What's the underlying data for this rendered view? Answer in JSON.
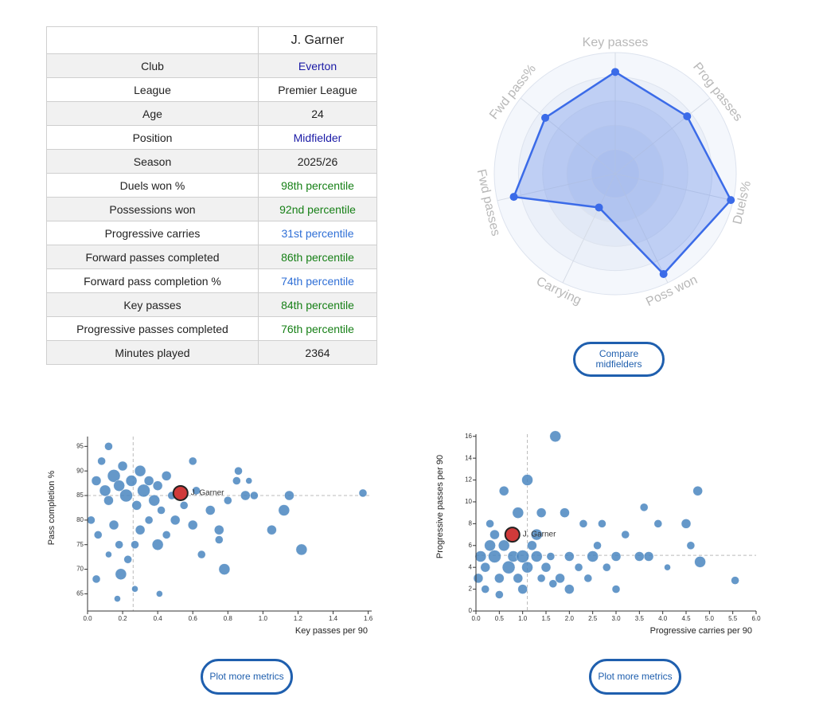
{
  "table": {
    "header": [
      "",
      "J. Garner"
    ],
    "rows": [
      {
        "label": "Club",
        "value": "Everton",
        "color": "#1a1aa6"
      },
      {
        "label": "League",
        "value": "Premier League",
        "color": "#222222"
      },
      {
        "label": "Age",
        "value": "24",
        "color": "#222222"
      },
      {
        "label": "Position",
        "value": "Midfielder",
        "color": "#1a1aa6"
      },
      {
        "label": "Season",
        "value": "2025/26",
        "color": "#222222"
      },
      {
        "label": "Duels won %",
        "value": "98th percentile",
        "color": "#178017"
      },
      {
        "label": "Possessions won",
        "value": "92nd percentile",
        "color": "#178017"
      },
      {
        "label": "Progressive carries",
        "value": "31st percentile",
        "color": "#2f6fd6"
      },
      {
        "label": "Forward passes completed",
        "value": "86th percentile",
        "color": "#178017"
      },
      {
        "label": "Forward pass completion %",
        "value": "74th percentile",
        "color": "#2f6fd6"
      },
      {
        "label": "Key passes",
        "value": "84th percentile",
        "color": "#178017"
      },
      {
        "label": "Progressive passes completed",
        "value": "76th percentile",
        "color": "#178017"
      },
      {
        "label": "Minutes played",
        "value": "2364",
        "color": "#222222"
      }
    ]
  },
  "buttons": [
    "Compare midfielders",
    "Plot more metrics",
    "Plot more metrics"
  ],
  "chart_data": [
    {
      "type": "radar",
      "categories": [
        "Key passes",
        "Prog passes",
        "Duels%",
        "Poss won",
        "Carrying",
        "Fwd passes",
        "Fwd pass%"
      ],
      "values": [
        84,
        76,
        98,
        92,
        31,
        86,
        74
      ],
      "rlim": [
        0,
        100
      ],
      "color": "#3b6be8"
    },
    {
      "type": "scatter",
      "y_label": "Pass completion %",
      "x_label": "Key passes per 90",
      "xlim": [
        0,
        1.62
      ],
      "ylim": [
        61.5,
        97
      ],
      "xticks": [
        {
          "value": 0,
          "label": "0.0"
        },
        {
          "value": 0.2,
          "label": "0.2"
        },
        {
          "value": 0.4,
          "label": "0.4"
        },
        {
          "value": 0.6,
          "label": "0.6"
        },
        {
          "value": 0.8,
          "label": "0.8"
        },
        {
          "value": 1,
          "label": "1.0"
        },
        {
          "value": 1.2,
          "label": "1.2"
        },
        {
          "value": 1.4,
          "label": "1.4"
        },
        {
          "value": 1.6,
          "label": "1.6"
        }
      ],
      "yticks": [
        65,
        70,
        75,
        80,
        85,
        90,
        95
      ],
      "reference_lines": {
        "x": 0.26,
        "y": 85
      },
      "points": {
        "color": "#4a86c0",
        "x": [
          0.05,
          0.08,
          0.1,
          0.12,
          0.15,
          0.18,
          0.2,
          0.22,
          0.25,
          0.28,
          0.3,
          0.32,
          0.35,
          0.38,
          0.4,
          0.42,
          0.45,
          0.48,
          0.02,
          0.06,
          0.12,
          0.15,
          0.18,
          0.19,
          0.23,
          0.27,
          0.3,
          0.35,
          0.4,
          0.45,
          0.5,
          0.55,
          0.6,
          0.62,
          0.65,
          0.7,
          0.75,
          0.78,
          0.8,
          0.85,
          0.9,
          0.95,
          1.05,
          1.12,
          1.15,
          1.22,
          1.57,
          0.12,
          0.05,
          0.17,
          0.41,
          0.27,
          0.6,
          0.86,
          0.92,
          0.75
        ],
        "values": [
          88,
          92,
          86,
          84,
          89,
          87,
          91,
          85,
          88,
          83,
          90,
          86,
          88,
          84,
          87,
          82,
          89,
          85,
          80,
          77,
          73,
          79,
          75,
          69,
          72,
          66,
          78,
          80,
          75,
          77,
          80,
          83,
          79,
          86,
          73,
          82,
          78,
          70,
          84,
          88,
          85,
          85,
          78,
          82,
          85,
          74,
          85.5,
          95,
          68,
          64,
          65,
          75,
          92,
          90,
          88,
          76
        ],
        "sizes": [
          6,
          5,
          7,
          6,
          8,
          7,
          6,
          8,
          7,
          6,
          7,
          8,
          6,
          7,
          6,
          5,
          6,
          5,
          5,
          5,
          4,
          6,
          5,
          7,
          5,
          4,
          6,
          5,
          7,
          5,
          6,
          5,
          6,
          5,
          5,
          6,
          6,
          7,
          5,
          5,
          6,
          5,
          6,
          7,
          6,
          7,
          5,
          5,
          5,
          4,
          4,
          5,
          5,
          5,
          4,
          5
        ]
      },
      "highlight": {
        "label": "J. Garner",
        "x": 0.53,
        "value": 85.5,
        "color": "#d03a3a"
      }
    },
    {
      "type": "scatter",
      "y_label": "Progressive passes per 90",
      "x_label": "Progressive carries per 90",
      "xlim": [
        0,
        6
      ],
      "ylim": [
        0,
        16.2
      ],
      "xticks": [
        {
          "value": 0,
          "label": "0.0"
        },
        {
          "value": 0.5,
          "label": "0.5"
        },
        {
          "value": 1,
          "label": "1.0"
        },
        {
          "value": 1.5,
          "label": "1.5"
        },
        {
          "value": 2,
          "label": "2.0"
        },
        {
          "value": 2.5,
          "label": "2.5"
        },
        {
          "value": 3,
          "label": "3.0"
        },
        {
          "value": 3.5,
          "label": "3.5"
        },
        {
          "value": 4,
          "label": "4.0"
        },
        {
          "value": 4.5,
          "label": "4.5"
        },
        {
          "value": 5,
          "label": "5.0"
        },
        {
          "value": 5.5,
          "label": "5.5"
        },
        {
          "value": 6,
          "label": "6.0"
        }
      ],
      "yticks": [
        0,
        2,
        4,
        6,
        8,
        10,
        12,
        14,
        16
      ],
      "reference_lines": {
        "x": 1.1,
        "y": 5.1
      },
      "points": {
        "color": "#4a86c0",
        "x": [
          0.1,
          0.2,
          0.3,
          0.4,
          0.5,
          0.6,
          0.7,
          0.8,
          0.9,
          1.0,
          1.1,
          1.2,
          1.3,
          1.4,
          1.5,
          1.6,
          1.8,
          2.0,
          2.2,
          2.4,
          2.6,
          2.8,
          3.0,
          3.2,
          3.5,
          3.7,
          3.9,
          4.1,
          4.5,
          4.6,
          4.75,
          4.8,
          5.55,
          1.7,
          1.1,
          0.6,
          0.9,
          1.4,
          1.9,
          2.3,
          0.3,
          0.2,
          0.5,
          1.0,
          2.0,
          3.0,
          2.7,
          3.6,
          0.4,
          1.3,
          2.5,
          0.05,
          1.65
        ],
        "values": [
          5,
          4,
          6,
          5,
          3,
          6,
          4,
          5,
          3,
          5,
          4,
          6,
          5,
          3,
          4,
          5,
          3,
          5,
          4,
          3,
          6,
          4,
          5,
          7,
          5,
          5,
          8,
          4,
          8,
          6,
          11,
          4.5,
          2.8,
          16,
          12,
          11,
          9,
          9,
          9,
          8,
          8,
          2,
          1.5,
          2,
          2,
          2,
          8,
          9.5,
          7,
          7,
          5,
          3,
          2.5
        ],
        "sizes": [
          7,
          6,
          7,
          8,
          6,
          7,
          8,
          7,
          6,
          8,
          7,
          6,
          7,
          5,
          6,
          5,
          6,
          6,
          5,
          5,
          5,
          5,
          6,
          5,
          6,
          6,
          5,
          4,
          6,
          5,
          6,
          7,
          5,
          7,
          7,
          6,
          7,
          6,
          6,
          5,
          5,
          5,
          5,
          6,
          6,
          5,
          5,
          5,
          6,
          7,
          7,
          6,
          5
        ]
      },
      "highlight": {
        "label": "J. Garner",
        "x": 0.78,
        "value": 7,
        "color": "#d03a3a"
      }
    }
  ]
}
